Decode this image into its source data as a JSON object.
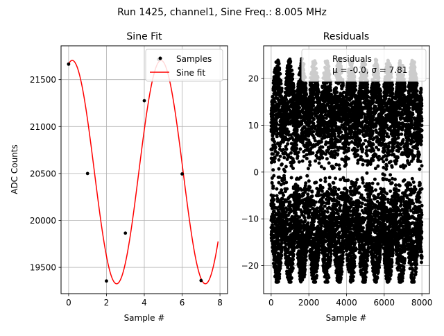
{
  "figure": {
    "suptitle": "Run 1425, channel1, Sine Freq.: 8.005 MHz"
  },
  "chart_data": [
    {
      "type": "scatter",
      "title": "Sine Fit",
      "xlabel": "Sample #",
      "ylabel": "ADC Counts",
      "xlim": [
        -0.4,
        8.4
      ],
      "ylim": [
        19220,
        21860
      ],
      "xticks": [
        0,
        2,
        4,
        6,
        8
      ],
      "xtick_labels": [
        "0",
        "2",
        "4",
        "6",
        "8"
      ],
      "yticks": [
        19500,
        20000,
        20500,
        21000,
        21500
      ],
      "ytick_labels": [
        "19500",
        "20000",
        "20500",
        "21000",
        "21500"
      ],
      "grid": true,
      "legend_position": "top-right",
      "series": [
        {
          "name": "Samples",
          "kind": "points",
          "color": "#000000",
          "x": [
            0,
            1,
            2,
            3,
            4,
            4.75,
            6,
            7
          ],
          "y": [
            21665,
            20500,
            19355,
            19865,
            21275,
            21715,
            20495,
            19360
          ]
        },
        {
          "name": "Sine fit",
          "kind": "line",
          "color": "#ff0000",
          "function": {
            "amplitude": 1190,
            "offset": 20515,
            "omega": 1.3396,
            "phase": 1.3137
          },
          "x_range": [
            0,
            7.9
          ]
        }
      ]
    },
    {
      "type": "scatter",
      "title": "Residuals",
      "xlabel": "Sample #",
      "xlim": [
        -400,
        8400
      ],
      "ylim": [
        -26,
        27
      ],
      "xticks": [
        0,
        2000,
        4000,
        6000,
        8000
      ],
      "xtick_labels": [
        "0",
        "2000",
        "4000",
        "6000",
        "8000"
      ],
      "yticks": [
        -20,
        -10,
        0,
        10,
        20
      ],
      "ytick_labels": [
        "−20",
        "−10",
        "0",
        "10",
        "20"
      ],
      "grid": true,
      "legend_position": "top-right",
      "legend_lines": [
        "Residuals",
        "μ = -0.0, σ = 7.81"
      ],
      "series": [
        {
          "name": "Residuals",
          "kind": "points",
          "color": "#000000",
          "point_count": 8000,
          "mean": -0.0,
          "std": 7.81,
          "y_extent": [
            -23.5,
            24.8
          ]
        }
      ]
    }
  ]
}
